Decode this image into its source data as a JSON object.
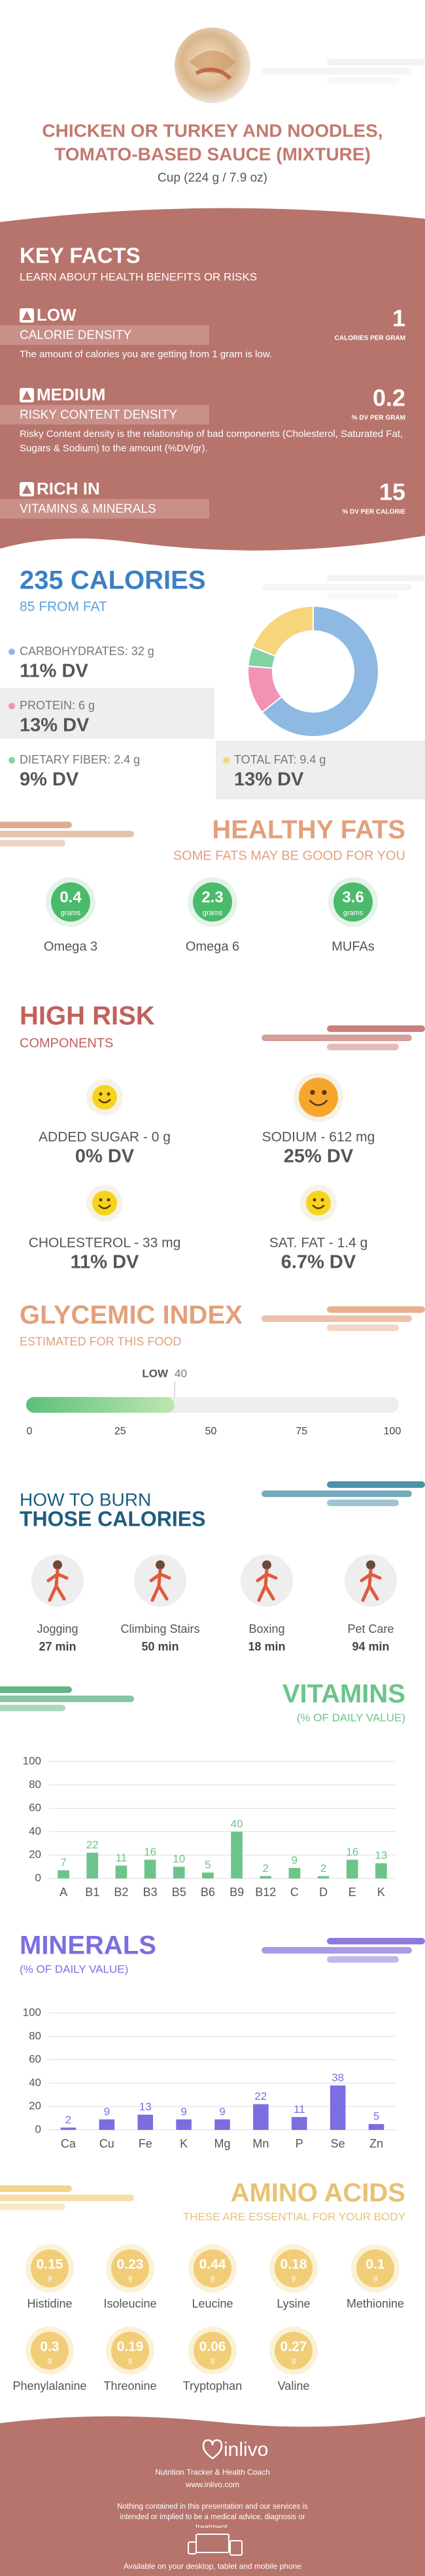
{
  "header": {
    "title_lines": [
      "CHICKEN OR TURKEY AND NOODLES,",
      "TOMATO-BASED SAUCE (MIXTURE)"
    ],
    "serving": "Cup (224 g / 7.9 oz)"
  },
  "key_facts": {
    "title": "KEY FACTS",
    "subtitle": "LEARN ABOUT HEALTH BENEFITS OR RISKS",
    "items": [
      {
        "level": "LOW",
        "label": "CALORIE DENSITY",
        "value": "1",
        "unit": "CALORIES PER GRAM",
        "description": "The amount of calories you are getting from 1 gram is low."
      },
      {
        "level": "MEDIUM",
        "label": "RISKY CONTENT DENSITY",
        "value": "0.2",
        "unit": "% DV PER GRAM",
        "description": "Risky Content density is the relationship of bad components (Cholesterol, Saturated Fat, Sugars & Sodium) to the amount (%DV/gr)."
      },
      {
        "level": "RICH IN",
        "label": "VITAMINS & MINERALS",
        "value": "15",
        "unit": "% DV PER CALORIE"
      }
    ]
  },
  "calories": {
    "title": "235 CALORIES",
    "subtitle": "85 FROM FAT"
  },
  "healthy_fats": {
    "title": "HEALTHY FATS",
    "subtitle": "SOME FATS MAY BE GOOD FOR YOU",
    "unit": "grams",
    "items": [
      {
        "value": "0.4",
        "name": "Omega 3"
      },
      {
        "value": "2.3",
        "name": "Omega 6"
      },
      {
        "value": "3.6",
        "name": "MUFAs"
      }
    ]
  },
  "high_risk": {
    "title": "HIGH RISK",
    "subtitle": "COMPONENTS",
    "items": [
      {
        "label": "ADDED SUGAR - 0 g",
        "dv": "0% DV"
      },
      {
        "label": "SODIUM - 612 mg",
        "dv": "25% DV"
      },
      {
        "label": "CHOLESTEROL - 33 mg",
        "dv": "11% DV"
      },
      {
        "label": "SAT. FAT - 1.4 g",
        "dv": "6.7% DV"
      }
    ]
  },
  "burn": {
    "title_lines": [
      "HOW TO BURN",
      "THOSE CALORIES"
    ],
    "items": [
      {
        "name": "Jogging",
        "time": "27 min"
      },
      {
        "name": "Climbing Stairs",
        "time": "50 min"
      },
      {
        "name": "Boxing",
        "time": "18 min"
      },
      {
        "name": "Pet Care",
        "time": "94 min"
      }
    ]
  },
  "amino_acids": {
    "title": "AMINO ACIDS",
    "subtitle": "THESE ARE ESSENTIAL FOR YOUR BODY",
    "unit": "g",
    "items": [
      {
        "value": "0.15",
        "name": "Histidine"
      },
      {
        "value": "0.23",
        "name": "Isoleucine"
      },
      {
        "value": "0.44",
        "name": "Leucine"
      },
      {
        "value": "0.18",
        "name": "Lysine"
      },
      {
        "value": "0.1",
        "name": "Methionine"
      },
      {
        "value": "0.3",
        "name": "Phenylalanine"
      },
      {
        "value": "0.19",
        "name": "Threonine"
      },
      {
        "value": "0.06",
        "name": "Tryptophan"
      },
      {
        "value": "0.27",
        "name": "Valine"
      }
    ]
  },
  "footer": {
    "brand": "inlivo",
    "tagline": "Nutrition Tracker & Health Coach",
    "url": "www.inlivo.com",
    "disclaimer": "Nothing contained in this presentation and our services is intended or implied to be a medical advice, diagnosis or treatment.",
    "available": "Available on your desktop, tablet and mobile phone"
  },
  "chart_data": [
    {
      "type": "pie",
      "categories": [
        "CARBOHYDRATES:",
        "PROTEIN:",
        "DIETARY FIBER:",
        "TOTAL FAT:"
      ],
      "values": [
        32,
        6,
        2.4,
        9.4
      ],
      "value_labels": [
        "32 g",
        "6 g",
        "2.4 g",
        "9.4 g"
      ],
      "dv_labels": [
        "11% DV",
        "13% DV",
        "9% DV",
        "13% DV"
      ],
      "colors": [
        "#8db9e3",
        "#f293b5",
        "#82d3a3",
        "#f6d57c"
      ]
    },
    {
      "type": "gauge",
      "title": "GLYCEMIC INDEX",
      "subtitle": "ESTIMATED FOR THIS FOOD",
      "label": "LOW",
      "value": 40,
      "xlim": [
        0,
        100
      ],
      "xticks": [
        0,
        25,
        50,
        75,
        100
      ],
      "color": "#6cc88a"
    },
    {
      "type": "bar",
      "title": "VITAMINS",
      "subtitle": "(% OF DAILY VALUE)",
      "categories": [
        "A",
        "B1",
        "B2",
        "B3",
        "B5",
        "B6",
        "B9",
        "B12",
        "C",
        "D",
        "E",
        "K"
      ],
      "values": [
        7,
        22,
        11,
        16,
        10,
        5,
        40,
        2,
        9,
        2,
        16,
        13
      ],
      "color": "#6cc48a",
      "ylim": [
        0,
        100
      ],
      "yticks": [
        0,
        20,
        40,
        60,
        80,
        100
      ],
      "grid": true
    },
    {
      "type": "bar",
      "title": "MINERALS",
      "subtitle": "(% OF DAILY VALUE)",
      "categories": [
        "Ca",
        "Cu",
        "Fe",
        "K",
        "Mg",
        "Mn",
        "P",
        "Se",
        "Zn"
      ],
      "values": [
        2,
        9,
        13,
        9,
        9,
        22,
        11,
        38,
        5
      ],
      "color": "#7b6ee0",
      "ylim": [
        0,
        100
      ],
      "yticks": [
        0,
        20,
        40,
        60,
        80,
        100
      ],
      "grid": true
    }
  ]
}
